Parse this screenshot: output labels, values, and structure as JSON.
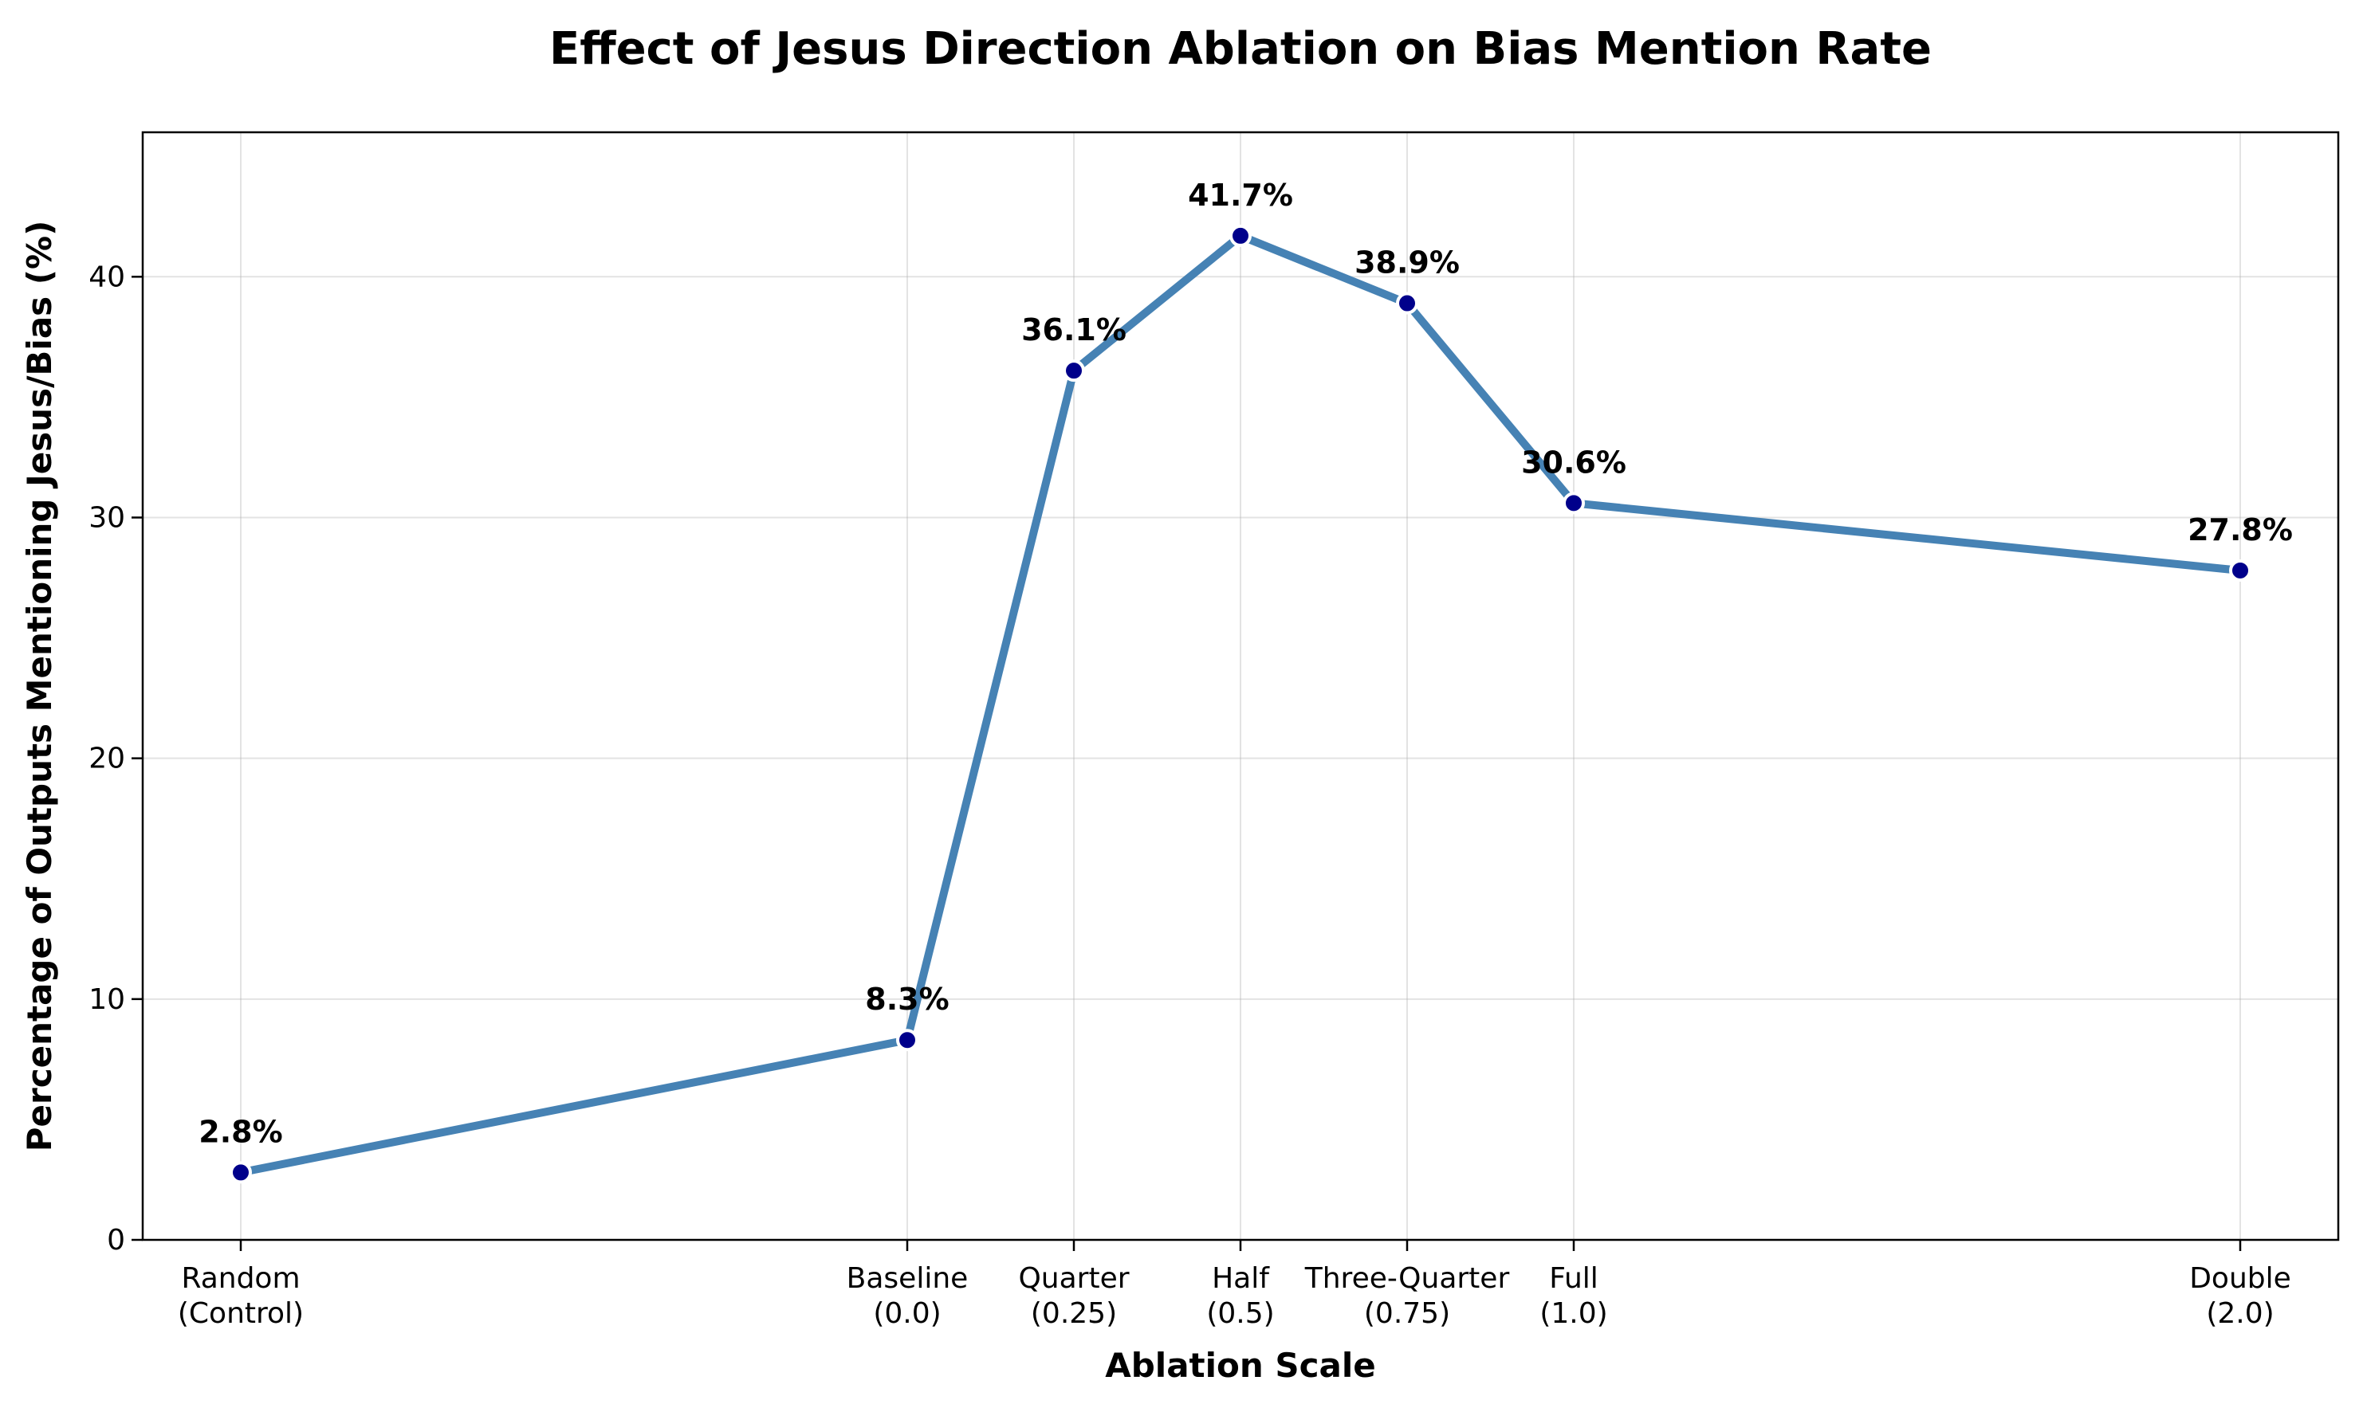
{
  "chart_data": {
    "type": "line",
    "title": "Effect of Jesus Direction Ablation on Bias Mention Rate",
    "xlabel": "Ablation Scale",
    "ylabel": "Percentage of Outputs Mentioning Jesus/Bias (%)",
    "ylim": [
      0,
      46
    ],
    "yticks": [
      0,
      10,
      20,
      30,
      40
    ],
    "grid": true,
    "points": [
      {
        "category": "Random\n(Control)",
        "value": 2.8,
        "label": "2.8%"
      },
      {
        "category": "Baseline\n(0.0)",
        "value": 8.3,
        "label": "8.3%"
      },
      {
        "category": "Quarter\n(0.25)",
        "value": 36.1,
        "label": "36.1%"
      },
      {
        "category": "Half\n(0.5)",
        "value": 41.7,
        "label": "41.7%"
      },
      {
        "category": "Three-Quarter\n(0.75)",
        "value": 38.9,
        "label": "38.9%"
      },
      {
        "category": "Full\n(1.0)",
        "value": 30.6,
        "label": "30.6%"
      },
      {
        "category": "Double\n(2.0)",
        "value": 27.8,
        "label": "27.8%"
      }
    ],
    "colors": {
      "line": "#4682b4",
      "marker": "#00008b",
      "marker_edge": "#ffffff"
    }
  }
}
